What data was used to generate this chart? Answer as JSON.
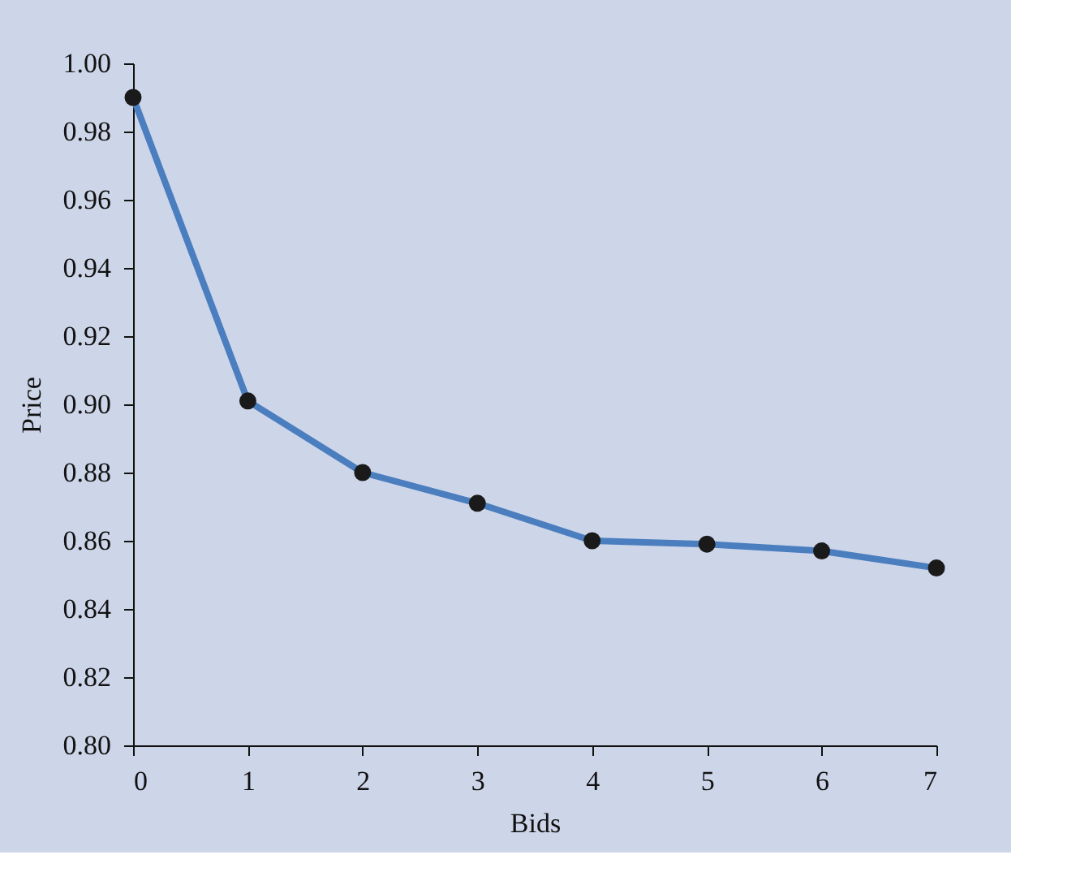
{
  "chart_data": {
    "type": "line",
    "xlabel": "Bids",
    "ylabel": "Price",
    "x": [
      0,
      1,
      2,
      3,
      4,
      5,
      6,
      7
    ],
    "series": [
      {
        "color": "#4a7ebf",
        "values": [
          0.99,
          0.901,
          0.88,
          0.871,
          0.86,
          0.859,
          0.857,
          0.852
        ]
      }
    ],
    "xlim": [
      0,
      7
    ],
    "xticks": [
      0,
      1,
      2,
      3,
      4,
      5,
      6,
      7
    ],
    "ylim": [
      0.8,
      1.0
    ],
    "yticks": [
      {
        "value": 0.8,
        "label": "0.80"
      },
      {
        "value": 0.82,
        "label": "0.82"
      },
      {
        "value": 0.84,
        "label": "0.84"
      },
      {
        "value": 0.86,
        "label": "0.86"
      },
      {
        "value": 0.88,
        "label": "0.88"
      },
      {
        "value": 0.9,
        "label": "0.90"
      },
      {
        "value": 0.92,
        "label": "0.92"
      },
      {
        "value": 0.94,
        "label": "0.94"
      },
      {
        "value": 0.96,
        "label": "0.96"
      },
      {
        "value": 0.98,
        "label": "0.98"
      },
      {
        "value": 1.0,
        "label": "1.00"
      }
    ],
    "marker": "circle",
    "line_style": "solid",
    "grid": false
  }
}
